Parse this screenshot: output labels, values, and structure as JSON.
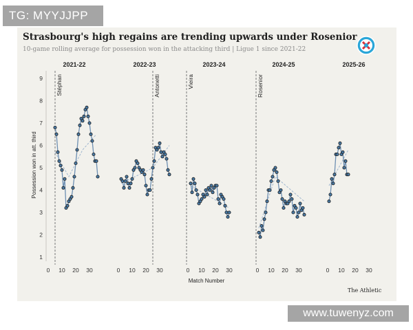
{
  "watermark_top": "TG: MYYJJPP",
  "watermark_bottom": "www.tuwenyz.com",
  "credit": "The Athletic",
  "logo": {
    "icon": "strasbourg-crest-icon",
    "colors": [
      "#2aa6d8",
      "#d8323a"
    ]
  },
  "colors": {
    "background": "#f2f1ec",
    "line": "#6d8fb2",
    "point_fill": "#4a7ba6",
    "point_stroke": "#1a1a1a",
    "trend": "#9fb6cf",
    "divider": "#777777"
  },
  "chart_data": {
    "type": "line",
    "title": "Strasbourg's high regains are trending upwards under Rosenior",
    "subtitle": "10-game rolling average for possession won in the attacking third | Ligue 1 since 2021-22",
    "xlabel": "Match Number",
    "ylabel": "Possession won in att. third",
    "ylim": [
      0.5,
      9.3
    ],
    "yticks": [
      1,
      2,
      3,
      4,
      5,
      6,
      7,
      8,
      9
    ],
    "xlim": [
      0,
      38
    ],
    "xticks": [
      0,
      10,
      20,
      30
    ],
    "panels": [
      {
        "season": "2021-22",
        "managers": [
          {
            "name": "Stéphan",
            "match": 5
          }
        ],
        "x": [
          5,
          6,
          7,
          8,
          9,
          10,
          11,
          12,
          13,
          14,
          15,
          16,
          17,
          18,
          19,
          20,
          21,
          22,
          23,
          24,
          25,
          26,
          27,
          28,
          29,
          30,
          31,
          32,
          33,
          34,
          35,
          36
        ],
        "values": [
          6.8,
          6.5,
          5.7,
          5.3,
          5.1,
          4.9,
          4.1,
          4.5,
          3.2,
          3.3,
          3.5,
          3.6,
          3.7,
          4.1,
          4.6,
          5.2,
          5.8,
          6.5,
          6.9,
          7.2,
          7.1,
          7.3,
          7.6,
          7.7,
          7.3,
          7.0,
          6.5,
          6.2,
          5.6,
          5.3,
          5.3,
          4.6
        ],
        "trend": [
          [
            5,
            5.7
          ],
          [
            15,
            4.6
          ],
          [
            25,
            5.8
          ],
          [
            35,
            6.5
          ]
        ]
      },
      {
        "season": "2022-23",
        "managers": [
          {
            "name": "Antonetti",
            "match": 25
          }
        ],
        "x": [
          2,
          3,
          4,
          5,
          6,
          7,
          8,
          9,
          10,
          11,
          12,
          13,
          14,
          15,
          16,
          17,
          18,
          19,
          20,
          21,
          22,
          23,
          24,
          25,
          26,
          27,
          28,
          29,
          30,
          31,
          32,
          33,
          34,
          35,
          36,
          37
        ],
        "values": [
          4.5,
          4.4,
          4.1,
          4.4,
          4.6,
          4.3,
          4.1,
          4.3,
          4.5,
          4.9,
          5.0,
          5.3,
          5.2,
          5.0,
          4.9,
          4.8,
          4.9,
          4.7,
          4.2,
          3.8,
          4.0,
          4.0,
          4.5,
          5.0,
          5.3,
          5.9,
          5.8,
          5.9,
          6.1,
          5.7,
          5.5,
          5.7,
          5.6,
          5.4,
          4.9,
          4.7
        ],
        "trend": [
          [
            2,
            4.3
          ],
          [
            22,
            4.9
          ],
          [
            25,
            5.0
          ],
          [
            37,
            6.0
          ]
        ]
      },
      {
        "season": "2023-24",
        "managers": [
          {
            "name": "Vieira",
            "match": 0
          }
        ],
        "x": [
          2,
          3,
          4,
          5,
          6,
          7,
          8,
          9,
          10,
          11,
          12,
          13,
          14,
          15,
          16,
          17,
          18,
          19,
          20,
          21,
          22,
          23,
          24,
          25,
          26,
          27,
          28,
          29,
          30
        ],
        "values": [
          4.3,
          3.9,
          4.5,
          4.3,
          4.0,
          3.8,
          3.4,
          3.5,
          3.6,
          3.8,
          3.7,
          4.0,
          3.8,
          4.1,
          4.0,
          4.2,
          3.9,
          4.1,
          4.2,
          4.2,
          3.6,
          3.4,
          3.8,
          3.7,
          3.6,
          3.3,
          3.0,
          2.8,
          3.0
        ],
        "trend": [
          [
            2,
            4.2
          ],
          [
            30,
            3.2
          ]
        ]
      },
      {
        "season": "2024-25",
        "managers": [
          {
            "name": "Rosenior",
            "match": 0
          }
        ],
        "x": [
          1,
          2,
          3,
          4,
          5,
          6,
          7,
          8,
          9,
          10,
          11,
          12,
          13,
          14,
          15,
          16,
          17,
          18,
          19,
          20,
          21,
          22,
          23,
          24,
          25,
          26,
          27,
          28,
          29,
          30,
          31,
          32,
          33,
          34
        ],
        "values": [
          2.1,
          1.9,
          2.4,
          2.2,
          2.7,
          3.0,
          3.5,
          4.0,
          4.0,
          4.4,
          4.6,
          4.9,
          5.0,
          4.8,
          4.4,
          3.9,
          4.0,
          3.6,
          3.2,
          3.5,
          3.4,
          3.4,
          3.5,
          3.8,
          3.6,
          3.0,
          3.3,
          3.2,
          2.8,
          3.0,
          3.4,
          3.1,
          3.2,
          2.9
        ],
        "trend": [
          [
            1,
            2.3
          ],
          [
            13,
            4.6
          ],
          [
            34,
            3.5
          ]
        ]
      },
      {
        "season": "2025-26",
        "managers": [],
        "x": [
          1,
          2,
          3,
          4,
          5,
          6,
          7,
          8,
          9,
          10,
          11,
          12,
          13,
          14,
          15
        ],
        "values": [
          3.5,
          3.8,
          4.5,
          4.3,
          4.7,
          5.6,
          5.6,
          5.9,
          6.1,
          5.6,
          5.7,
          5.0,
          5.3,
          4.7,
          4.7
        ],
        "trend": [
          [
            1,
            4.2
          ],
          [
            15,
            5.8
          ]
        ]
      }
    ]
  }
}
